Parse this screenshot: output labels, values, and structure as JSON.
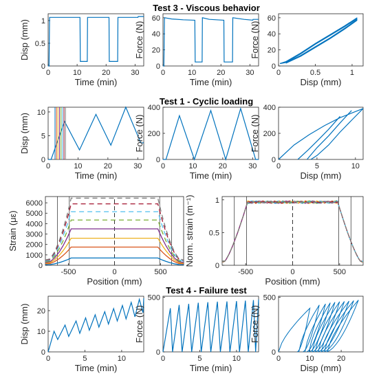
{
  "sections": [
    "Test 3 - Viscous behavior",
    "Test 1 - Cyclic loading",
    "Test 4 - Failure test"
  ],
  "colors": {
    "axes": "#262626",
    "blue": "#0072bd",
    "orange": "#d95319",
    "yellow": "#edb120",
    "purple": "#7e2f8e",
    "green": "#77ac30",
    "cyan": "#4dbeee",
    "red": "#a2142f",
    "gray": "#808080"
  },
  "chart_data": [
    {
      "type": "line",
      "panel": "test3-disp-time",
      "xlabel": "Time (min)",
      "ylabel": "Disp (mm)",
      "xlim": [
        0,
        33
      ],
      "ylim": [
        0,
        1.15
      ],
      "xticks": [
        "0",
        "10",
        "20",
        "30"
      ],
      "yticks": [
        "0",
        "0.5",
        "1"
      ],
      "series": [
        {
          "x": [
            0,
            0.3,
            0.5,
            0.6,
            11,
            11.1,
            13.5,
            13.6,
            21,
            21.1,
            24,
            24.1,
            31,
            31.1,
            33
          ],
          "values": [
            0,
            0,
            1.07,
            1.07,
            1.07,
            0.1,
            0.1,
            1.07,
            1.07,
            0.1,
            0.1,
            1.07,
            1.07,
            1.09,
            1.09
          ]
        }
      ]
    },
    {
      "type": "line",
      "panel": "test3-force-time",
      "xlabel": "Time (min)",
      "ylabel": "Force (N)",
      "xlim": [
        0,
        33
      ],
      "ylim": [
        0,
        65
      ],
      "xticks": [
        "0",
        "10",
        "20",
        "30"
      ],
      "yticks": [
        "0",
        "20",
        "40",
        "60"
      ],
      "series": [
        {
          "x": [
            0,
            0.3,
            0.5,
            0.6,
            3,
            7,
            11,
            11.1,
            13.5,
            13.6,
            16,
            21,
            21.1,
            24,
            24.1,
            28,
            31,
            31.1,
            33
          ],
          "values": [
            0,
            0,
            58,
            60,
            58.5,
            57.5,
            57,
            5,
            5,
            60,
            58,
            57,
            5,
            5,
            60,
            58,
            57,
            58,
            58
          ]
        }
      ]
    },
    {
      "type": "line",
      "panel": "test3-force-disp",
      "xlabel": "Disp (mm)",
      "ylabel": "Force (N)",
      "xlim": [
        0,
        1.15
      ],
      "ylim": [
        0,
        65
      ],
      "xticks": [
        "0",
        "0.5",
        "1"
      ],
      "yticks": [
        "0",
        "20",
        "40",
        "60"
      ],
      "series": [
        {
          "x": [
            0.02,
            0.1,
            0.3,
            0.5,
            0.7,
            0.9,
            1.07
          ],
          "values": [
            3,
            5.5,
            16,
            28,
            39,
            50,
            60
          ]
        },
        {
          "x": [
            0.02,
            0.1,
            0.3,
            0.5,
            0.7,
            0.9,
            1.07
          ],
          "values": [
            3,
            4.2,
            13,
            24,
            35,
            47,
            58
          ]
        },
        {
          "x": [
            0.1,
            0.3,
            0.5,
            0.7,
            0.9,
            1.07
          ],
          "values": [
            4.5,
            15,
            27,
            38,
            49,
            59
          ]
        },
        {
          "x": [
            0.1,
            0.3,
            0.5,
            0.7,
            0.9,
            1.07
          ],
          "values": [
            3.5,
            12,
            23,
            34,
            46,
            57
          ]
        }
      ]
    },
    {
      "type": "line",
      "panel": "test1-disp-time",
      "xlabel": "Time (min)",
      "ylabel": "Disp (mm)",
      "xlim": [
        0,
        32
      ],
      "ylim": [
        0,
        11
      ],
      "xticks": [
        "0",
        "10",
        "20",
        "30"
      ],
      "yticks": [
        "0",
        "5",
        "10"
      ],
      "series": [
        {
          "x": [
            0,
            1,
            5.5,
            10.5,
            16,
            21,
            26,
            31,
            32
          ],
          "values": [
            0,
            0,
            8,
            2,
            9.5,
            3,
            11,
            3.5,
            3.5
          ]
        }
      ],
      "markers": [
        {
          "x": 2.3,
          "color": "blue"
        },
        {
          "x": 2.8,
          "color": "orange"
        },
        {
          "x": 3.3,
          "color": "yellow"
        },
        {
          "x": 3.8,
          "color": "purple"
        },
        {
          "x": 4.3,
          "color": "green"
        },
        {
          "x": 4.8,
          "color": "cyan"
        },
        {
          "x": 5.3,
          "color": "red"
        },
        {
          "x": 5.8,
          "color": "gray"
        }
      ]
    },
    {
      "type": "line",
      "panel": "test1-force-time",
      "xlabel": "Time (min)",
      "ylabel": "Force (N)",
      "xlim": [
        0,
        32
      ],
      "ylim": [
        0,
        400
      ],
      "xticks": [
        "0",
        "10",
        "20",
        "30"
      ],
      "yticks": [
        "0",
        "200",
        "400"
      ],
      "series": [
        {
          "x": [
            0,
            1,
            5.5,
            10.5,
            16,
            21,
            26,
            31,
            32
          ],
          "values": [
            0,
            0,
            335,
            0,
            375,
            0,
            390,
            0,
            0
          ]
        }
      ]
    },
    {
      "type": "line",
      "panel": "test1-force-disp",
      "xlabel": "Disp (mm)",
      "ylabel": "Force (N)",
      "xlim": [
        0,
        11
      ],
      "ylim": [
        0,
        400
      ],
      "xticks": [
        "0",
        "5",
        "10"
      ],
      "yticks": [
        "0",
        "200",
        "400"
      ],
      "series": [
        {
          "x": [
            0,
            2,
            4,
            6,
            8,
            9.5,
            11
          ],
          "values": [
            0,
            110,
            190,
            260,
            320,
            355,
            390
          ]
        },
        {
          "x": [
            8,
            6.5,
            5,
            3.8,
            2.5
          ],
          "values": [
            330,
            230,
            140,
            70,
            0
          ]
        },
        {
          "x": [
            9.5,
            8,
            6.5,
            5,
            3.7
          ],
          "values": [
            375,
            280,
            180,
            90,
            0
          ]
        },
        {
          "x": [
            11,
            9.5,
            8,
            6.5,
            5,
            4.2
          ],
          "values": [
            390,
            300,
            210,
            110,
            30,
            0
          ]
        }
      ]
    },
    {
      "type": "line",
      "panel": "strain-position",
      "xlabel": "Position (mm)",
      "ylabel": "Strain (με)",
      "xlim": [
        -750,
        750
      ],
      "ylim": [
        0,
        6600
      ],
      "xticks": [
        "-500",
        "0",
        "500"
      ],
      "yticks": [
        "0",
        "1000",
        "2000",
        "3000",
        "4000",
        "5000",
        "6000"
      ],
      "series": [
        {
          "name": "",
          "color": "blue",
          "style": "solid",
          "plateau": 700
        },
        {
          "name": "",
          "color": "orange",
          "style": "solid",
          "plateau": 1750
        },
        {
          "name": "",
          "color": "yellow",
          "style": "solid",
          "plateau": 2600
        },
        {
          "name": "",
          "color": "purple",
          "style": "solid",
          "plateau": 3500
        },
        {
          "name": "",
          "color": "green",
          "style": "dashed",
          "plateau": 4350
        },
        {
          "name": "",
          "color": "cyan",
          "style": "dashed",
          "plateau": 5150
        },
        {
          "name": "",
          "color": "red",
          "style": "dashed",
          "plateau": 5900
        },
        {
          "name": "",
          "color": "gray",
          "style": "dashed",
          "plateau": 6450
        }
      ],
      "vlines": [
        -620,
        -490,
        490,
        620
      ]
    },
    {
      "type": "line",
      "panel": "norm-strain-position",
      "xlabel": "Position (mm)",
      "ylabel": "Norm. strain (m⁻¹)",
      "xlim": [
        -750,
        750
      ],
      "ylim": [
        0,
        1.05
      ],
      "xticks": [
        "-500",
        "0",
        "500"
      ],
      "yticks": [
        "0",
        "0.5",
        "1"
      ],
      "vlines": [
        -620,
        -490,
        490,
        620
      ]
    },
    {
      "type": "line",
      "panel": "test4-disp-time",
      "xlabel": "Time (min)",
      "ylabel": "Disp (mm)",
      "xlim": [
        0,
        13
      ],
      "ylim": [
        0,
        27
      ],
      "xticks": [
        "0",
        "5",
        "10"
      ],
      "yticks": [
        "0",
        "10",
        "20"
      ],
      "series": [
        {
          "x": [
            0,
            0.8,
            1.3,
            2.3,
            2.8,
            3.8,
            4.3,
            5.1,
            5.6,
            6.4,
            6.9,
            7.7,
            8.2,
            8.9,
            9.4,
            10.1,
            10.6,
            11.3,
            11.8,
            12.4,
            12.9,
            13
          ],
          "values": [
            0,
            10,
            6,
            13,
            7.5,
            15,
            9,
            16.5,
            10.5,
            18,
            12,
            19.5,
            13.5,
            21,
            15,
            22.5,
            16,
            24,
            17,
            25.5,
            19,
            26
          ]
        }
      ]
    },
    {
      "type": "line",
      "panel": "test4-force-time",
      "xlabel": "Time (min)",
      "ylabel": "Force (N)",
      "xlim": [
        0,
        13
      ],
      "ylim": [
        0,
        510
      ],
      "xticks": [
        "0",
        "5",
        "10"
      ],
      "yticks": [
        "0",
        "500"
      ],
      "series": [
        {
          "x": [
            0,
            1,
            1.3,
            2.2,
            2.6,
            3.5,
            3.9,
            4.8,
            5.2,
            6.1,
            6.5,
            7.4,
            7.8,
            8.7,
            9.1,
            10,
            10.4,
            11.2,
            11.6,
            12.3,
            12.6,
            13
          ],
          "values": [
            0,
            400,
            0,
            430,
            0,
            440,
            0,
            450,
            0,
            455,
            0,
            460,
            0,
            462,
            0,
            465,
            0,
            470,
            0,
            475,
            0,
            480
          ]
        }
      ]
    },
    {
      "type": "line",
      "panel": "test4-force-disp",
      "xlabel": "Disp (mm)",
      "ylabel": "Force (N)",
      "xlim": [
        0,
        27
      ],
      "ylim": [
        0,
        510
      ],
      "xticks": [
        "0",
        "10",
        "20"
      ],
      "yticks": [
        "0",
        "500"
      ],
      "series": [
        {
          "peaks": [
            [
              10,
              400
            ],
            [
              13,
              430
            ],
            [
              15,
              440
            ],
            [
              16.5,
              450
            ],
            [
              18,
              455
            ],
            [
              19.5,
              460
            ],
            [
              21,
              462
            ],
            [
              22.5,
              465
            ],
            [
              24,
              470
            ],
            [
              25.5,
              475
            ]
          ]
        }
      ]
    }
  ]
}
